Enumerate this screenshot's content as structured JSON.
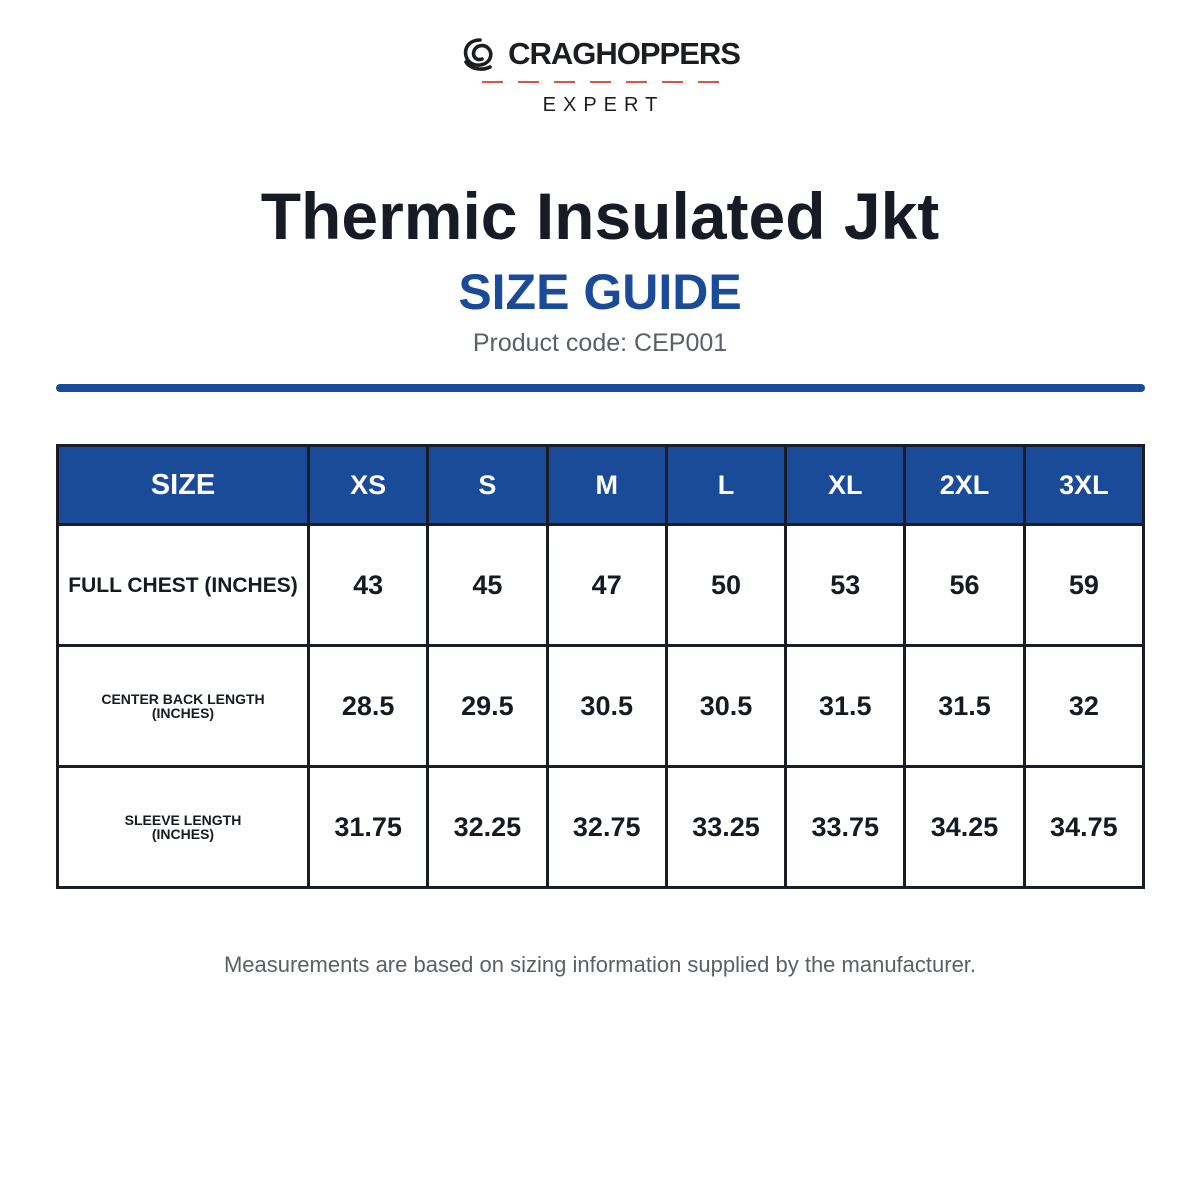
{
  "brand": {
    "name": "CRAGHOPPERS",
    "sub": "EXPERT",
    "logo_icon": "craghoppers-swirl-icon",
    "accent_color": "#d9573f"
  },
  "title": "Thermic Insulated Jkt",
  "subtitle": "SIZE GUIDE",
  "product_code": "Product code: CEP001",
  "colors": {
    "primary": "#194b98",
    "text": "#171b26",
    "muted": "#5b5f67"
  },
  "table": {
    "headers": [
      "SIZE",
      "XS",
      "S",
      "M",
      "L",
      "XL",
      "2XL",
      "3XL"
    ],
    "rows": [
      {
        "label": [
          "FULL CHEST (INCHES)"
        ],
        "values": [
          "43",
          "45",
          "47",
          "50",
          "53",
          "56",
          "59"
        ]
      },
      {
        "label": [
          "CENTER BACK LENGTH",
          "(INCHES)"
        ],
        "values": [
          "28.5",
          "29.5",
          "30.5",
          "30.5",
          "31.5",
          "31.5",
          "32"
        ]
      },
      {
        "label": [
          "SLEEVE LENGTH",
          "(INCHES)"
        ],
        "values": [
          "31.75",
          "32.25",
          "32.75",
          "33.25",
          "33.75",
          "34.25",
          "34.75"
        ]
      }
    ]
  },
  "note": "Measurements are based on sizing information supplied by the manufacturer."
}
